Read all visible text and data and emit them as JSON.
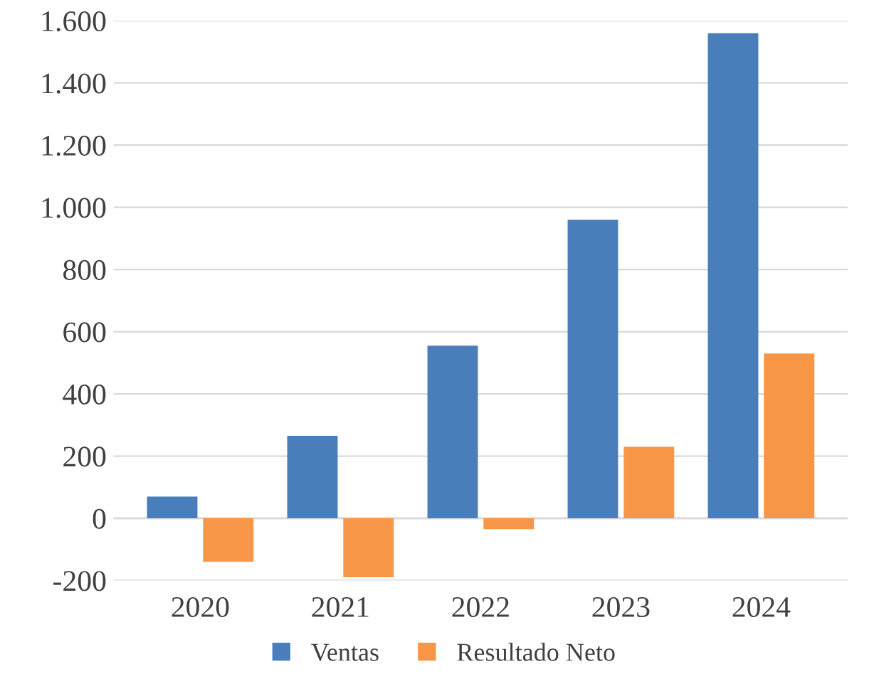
{
  "chart_data": {
    "type": "bar",
    "categories": [
      "2020",
      "2021",
      "2022",
      "2023",
      "2024"
    ],
    "series": [
      {
        "name": "Ventas",
        "color": "#4a7ebb",
        "values": [
          70,
          265,
          555,
          960,
          1560
        ]
      },
      {
        "name": "Resultado Neto",
        "color": "#f79646",
        "values": [
          -140,
          -190,
          -35,
          230,
          530
        ]
      }
    ],
    "ylim": [
      -200,
      1600
    ],
    "yticks": [
      {
        "value": -200,
        "label": "-200"
      },
      0,
      200,
      400,
      600,
      800,
      {
        "value": 1000,
        "label": "1.000"
      },
      {
        "value": 1200,
        "label": "1.200"
      },
      {
        "value": 1400,
        "label": "1.400"
      },
      {
        "value": 1600,
        "label": "1.600"
      }
    ],
    "grid": "y",
    "legend": "bottom"
  }
}
